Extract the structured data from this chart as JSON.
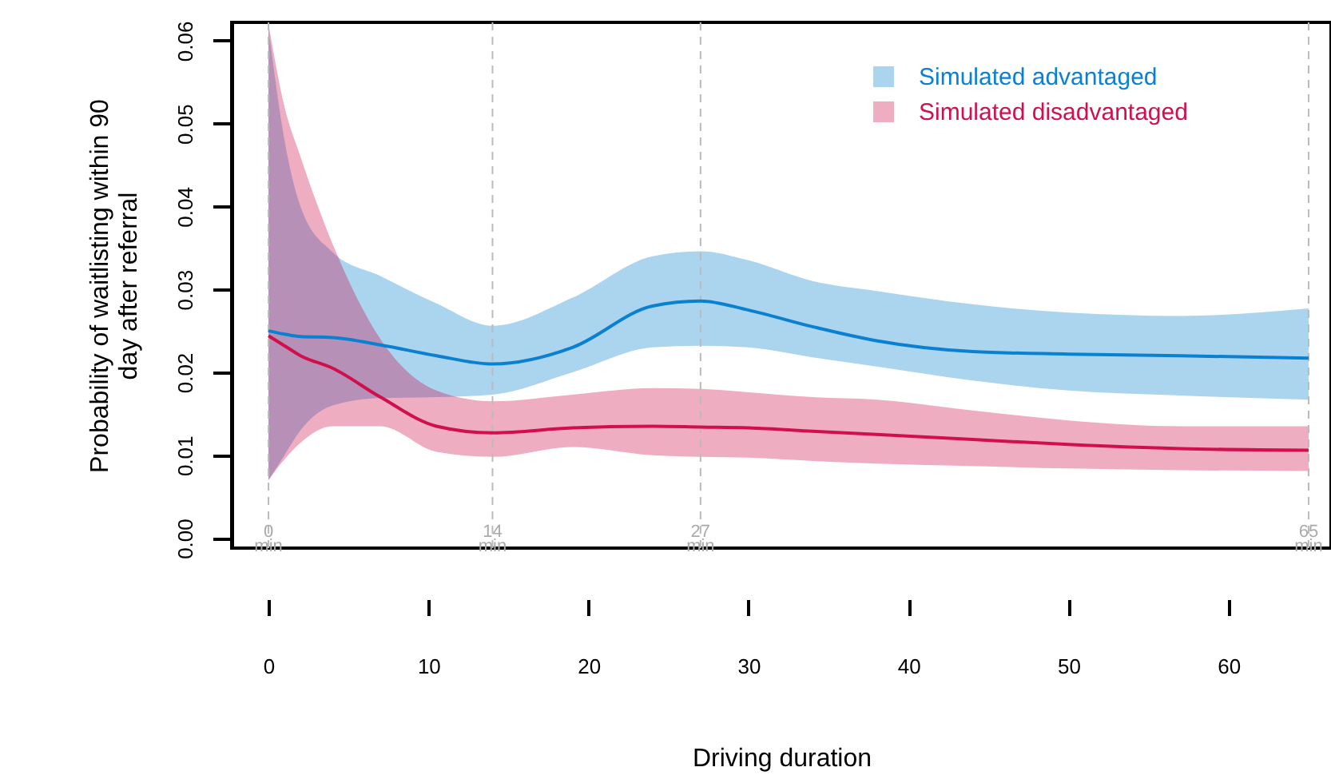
{
  "chart_data": {
    "type": "line",
    "xlabel": "Driving duration",
    "ylabel": "Probability of waitlisting within 90 day after referral",
    "x": [
      0,
      1,
      2,
      4,
      7,
      10.5,
      14,
      19,
      24,
      27,
      30,
      34,
      38,
      44,
      50,
      57,
      65
    ],
    "series": [
      {
        "name": "Simulated advantaged",
        "color": "#0a80d0",
        "values": [
          0.025,
          0.0246,
          0.0243,
          0.0242,
          0.0233,
          0.022,
          0.021,
          0.023,
          0.028,
          0.0286,
          0.0275,
          0.0255,
          0.0238,
          0.0225,
          0.0222,
          0.022,
          0.0217
        ],
        "upper": [
          0.0615,
          0.048,
          0.04,
          0.0345,
          0.0316,
          0.0283,
          0.0256,
          0.029,
          0.034,
          0.0346,
          0.0335,
          0.031,
          0.0298,
          0.0282,
          0.0272,
          0.0268,
          0.0277
        ],
        "lower": [
          0.007,
          0.01,
          0.013,
          0.016,
          0.0169,
          0.017,
          0.0173,
          0.02,
          0.023,
          0.0232,
          0.023,
          0.0218,
          0.0207,
          0.019,
          0.0178,
          0.0172,
          0.0167
        ]
      },
      {
        "name": "Simulated disadvantaged",
        "color": "#d0104c",
        "values": [
          0.0244,
          0.0232,
          0.022,
          0.0205,
          0.017,
          0.0135,
          0.0127,
          0.0133,
          0.0135,
          0.0134,
          0.0133,
          0.0129,
          0.0125,
          0.0119,
          0.0113,
          0.0108,
          0.0106
        ],
        "upper": [
          0.062,
          0.052,
          0.046,
          0.0355,
          0.024,
          0.0178,
          0.0165,
          0.0173,
          0.0181,
          0.018,
          0.0176,
          0.017,
          0.0167,
          0.0154,
          0.0142,
          0.0135,
          0.0135
        ],
        "lower": [
          0.007,
          0.0095,
          0.0115,
          0.0135,
          0.0135,
          0.0104,
          0.0098,
          0.011,
          0.01,
          0.0098,
          0.0097,
          0.0093,
          0.009,
          0.0087,
          0.0084,
          0.0082,
          0.0081
        ]
      }
    ],
    "xlim": [
      -2.3,
      66.4
    ],
    "ylim": [
      -0.0012,
      0.0622
    ],
    "xticks": [
      0,
      10,
      20,
      30,
      40,
      50,
      60
    ],
    "yticks": [
      {
        "value": 0,
        "label": "0.00"
      },
      {
        "value": 0.01,
        "label": "0.01"
      },
      {
        "value": 0.02,
        "label": "0.02"
      },
      {
        "value": 0.03,
        "label": "0.03"
      },
      {
        "value": 0.04,
        "label": "0.04"
      },
      {
        "value": 0.05,
        "label": "0.05"
      },
      {
        "value": 0.06,
        "label": "0.06"
      }
    ],
    "ref_lines": [
      {
        "axis": "x",
        "value": 0,
        "label": "0 min",
        "color": "#bbbbbb",
        "line_style": "dashed"
      },
      {
        "axis": "x",
        "value": 14,
        "label": "14 min",
        "color": "#bbbbbb",
        "line_style": "dashed"
      },
      {
        "axis": "x",
        "value": 27,
        "label": "27 min",
        "color": "#bbbbbb",
        "line_style": "dashed"
      },
      {
        "axis": "x",
        "value": 65,
        "label": "65 min",
        "color": "#bbbbbb",
        "line_style": "dashed"
      }
    ],
    "legend": "top right",
    "grid": false,
    "line_style": "solid",
    "marker": "none"
  }
}
